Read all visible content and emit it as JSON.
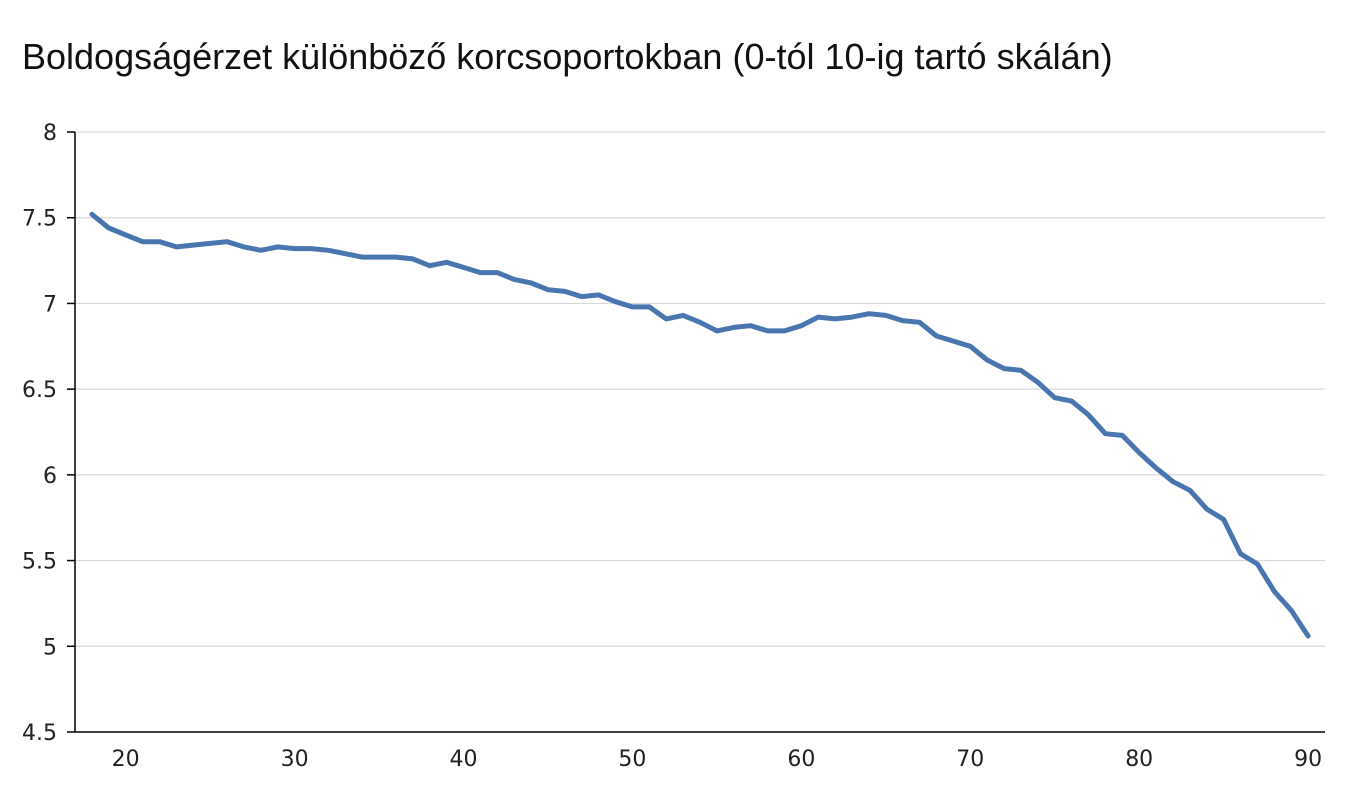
{
  "chart_data": {
    "type": "line",
    "title": "Boldogságérzet különböző korcsoportokban (0-tól 10-ig tartó skálán)",
    "xlabel": "",
    "ylabel": "",
    "xlim": [
      17,
      91
    ],
    "ylim": [
      4.5,
      8
    ],
    "xticks": [
      20,
      30,
      40,
      50,
      60,
      70,
      80,
      90
    ],
    "yticks": [
      4.5,
      5,
      5.5,
      6,
      6.5,
      7,
      7.5,
      8
    ],
    "ytick_labels": [
      "4.5",
      "5",
      "5.5",
      "6",
      "6.5",
      "7",
      "7.5",
      "8"
    ],
    "grid": true,
    "legend": "none",
    "series": [
      {
        "color": "#4a76b0",
        "x": [
          18,
          19,
          20,
          21,
          22,
          23,
          24,
          25,
          26,
          27,
          28,
          29,
          30,
          31,
          32,
          33,
          34,
          35,
          36,
          37,
          38,
          39,
          40,
          41,
          42,
          43,
          44,
          45,
          46,
          47,
          48,
          49,
          50,
          51,
          52,
          53,
          54,
          55,
          56,
          57,
          58,
          59,
          60,
          61,
          62,
          63,
          64,
          65,
          66,
          67,
          68,
          69,
          70,
          71,
          72,
          73,
          74,
          75,
          76,
          77,
          78,
          79,
          80,
          81,
          82,
          83,
          84,
          85,
          86,
          87,
          88,
          89,
          90
        ],
        "y": [
          7.52,
          7.44,
          7.4,
          7.36,
          7.36,
          7.33,
          7.34,
          7.35,
          7.36,
          7.33,
          7.31,
          7.33,
          7.32,
          7.32,
          7.31,
          7.29,
          7.27,
          7.27,
          7.27,
          7.26,
          7.22,
          7.24,
          7.21,
          7.18,
          7.18,
          7.14,
          7.12,
          7.08,
          7.07,
          7.04,
          7.05,
          7.01,
          6.98,
          6.98,
          6.91,
          6.93,
          6.89,
          6.84,
          6.86,
          6.87,
          6.84,
          6.84,
          6.87,
          6.92,
          6.91,
          6.92,
          6.94,
          6.93,
          6.9,
          6.89,
          6.81,
          6.78,
          6.75,
          6.67,
          6.62,
          6.61,
          6.54,
          6.45,
          6.43,
          6.35,
          6.24,
          6.23,
          6.13,
          6.04,
          5.96,
          5.91,
          5.8,
          5.74,
          5.54,
          5.48,
          5.32,
          5.21,
          5.06
        ]
      }
    ]
  }
}
